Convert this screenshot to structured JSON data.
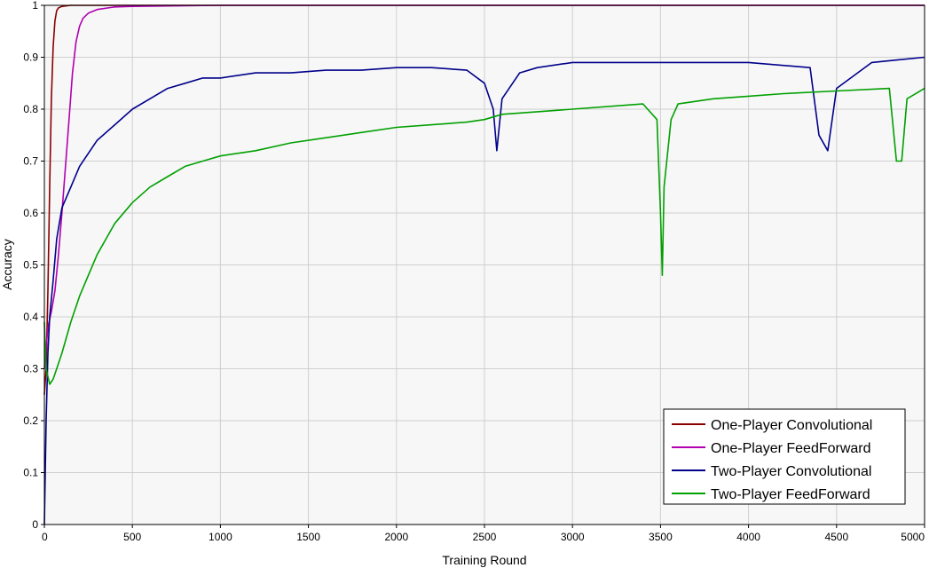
{
  "chart_data": {
    "type": "line",
    "title": "",
    "xlabel": "Training Round",
    "ylabel": "Accuracy",
    "xlim": [
      0,
      5000
    ],
    "ylim": [
      0,
      1
    ],
    "x_ticks": [
      "0",
      "500",
      "1000",
      "1500",
      "2000",
      "2500",
      "3000",
      "3500",
      "4000",
      "4500",
      "5000"
    ],
    "y_ticks": [
      "0",
      "0.1",
      "0.2",
      "0.3",
      "0.4",
      "0.5",
      "0.6",
      "0.7",
      "0.8",
      "0.9",
      "1"
    ],
    "grid": true,
    "legend_position": "bottom-right",
    "plot_background": "#f7f7f7",
    "series": [
      {
        "name": "One-Player Convolutional",
        "color": "#8b0000",
        "x": [
          0,
          10,
          20,
          30,
          40,
          50,
          60,
          70,
          80,
          100,
          150,
          200,
          500,
          1000,
          2000,
          3000,
          4000,
          5000
        ],
        "y": [
          0.25,
          0.3,
          0.45,
          0.65,
          0.82,
          0.92,
          0.97,
          0.99,
          0.995,
          0.998,
          1.0,
          1.0,
          1.0,
          1.0,
          1.0,
          1.0,
          1.0,
          1.0
        ]
      },
      {
        "name": "One-Player FeedForward",
        "color": "#b000b0",
        "x": [
          0,
          20,
          40,
          60,
          80,
          100,
          120,
          140,
          160,
          180,
          200,
          220,
          250,
          300,
          400,
          500,
          1000,
          2000,
          3000,
          4000,
          5000
        ],
        "y": [
          0.3,
          0.38,
          0.41,
          0.45,
          0.52,
          0.6,
          0.69,
          0.78,
          0.87,
          0.93,
          0.96,
          0.975,
          0.985,
          0.992,
          0.997,
          0.998,
          1.0,
          1.0,
          1.0,
          1.0,
          1.0
        ]
      },
      {
        "name": "Two-Player Convolutional",
        "color": "#00008b",
        "x": [
          0,
          10,
          20,
          30,
          50,
          70,
          100,
          150,
          200,
          300,
          400,
          500,
          600,
          700,
          800,
          900,
          1000,
          1200,
          1400,
          1600,
          1800,
          2000,
          2200,
          2400,
          2500,
          2550,
          2570,
          2600,
          2700,
          2800,
          3000,
          3500,
          4000,
          4350,
          4400,
          4450,
          4500,
          4700,
          5000
        ],
        "y": [
          0.0,
          0.2,
          0.33,
          0.4,
          0.47,
          0.55,
          0.61,
          0.65,
          0.69,
          0.74,
          0.77,
          0.8,
          0.82,
          0.84,
          0.85,
          0.86,
          0.86,
          0.87,
          0.87,
          0.875,
          0.875,
          0.88,
          0.88,
          0.875,
          0.85,
          0.8,
          0.72,
          0.82,
          0.87,
          0.88,
          0.89,
          0.89,
          0.89,
          0.88,
          0.75,
          0.72,
          0.84,
          0.89,
          0.9
        ]
      },
      {
        "name": "Two-Player FeedForward",
        "color": "#00a000",
        "x": [
          0,
          10,
          30,
          50,
          70,
          100,
          150,
          200,
          300,
          400,
          500,
          600,
          700,
          800,
          900,
          1000,
          1200,
          1400,
          1600,
          1800,
          2000,
          2200,
          2400,
          2500,
          2600,
          2800,
          3000,
          3400,
          3480,
          3500,
          3510,
          3520,
          3560,
          3600,
          3800,
          4000,
          4200,
          4500,
          4800,
          4840,
          4870,
          4900,
          5000
        ],
        "y": [
          0.39,
          0.3,
          0.27,
          0.28,
          0.3,
          0.33,
          0.39,
          0.44,
          0.52,
          0.58,
          0.62,
          0.65,
          0.67,
          0.69,
          0.7,
          0.71,
          0.72,
          0.735,
          0.745,
          0.755,
          0.765,
          0.77,
          0.775,
          0.78,
          0.79,
          0.795,
          0.8,
          0.81,
          0.78,
          0.6,
          0.48,
          0.65,
          0.78,
          0.81,
          0.82,
          0.825,
          0.83,
          0.835,
          0.84,
          0.7,
          0.7,
          0.82,
          0.84
        ]
      }
    ]
  }
}
